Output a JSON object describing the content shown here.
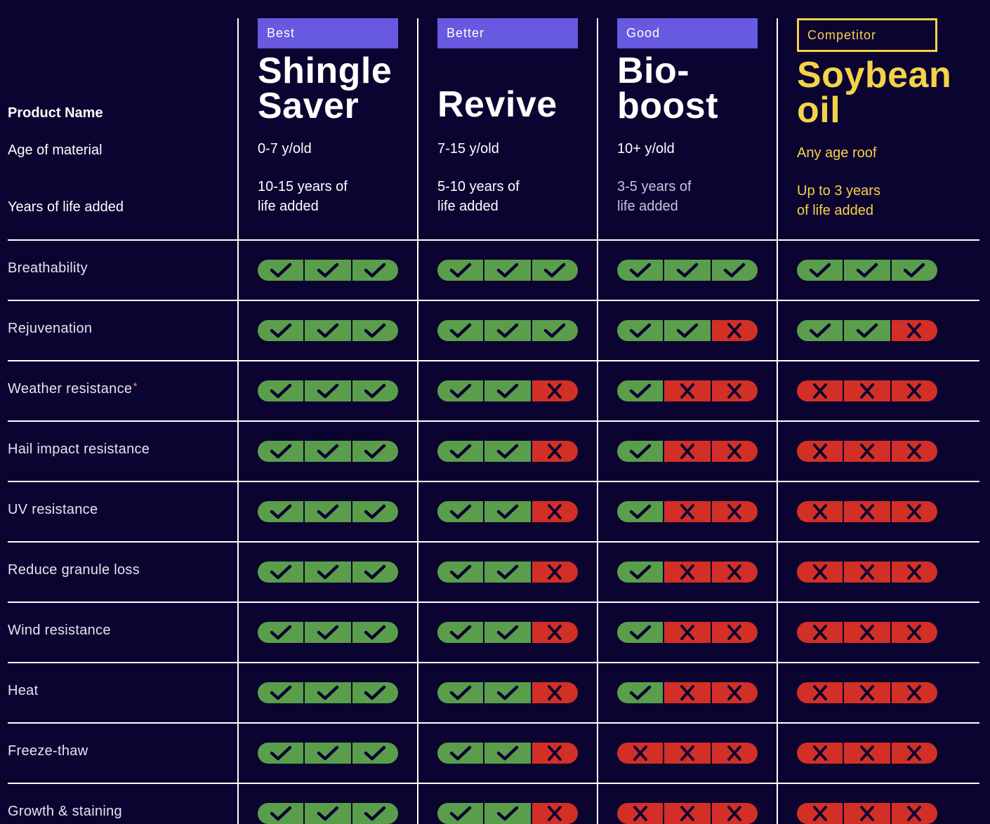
{
  "labels": {
    "product_name": "Product Name",
    "age": "Age of material",
    "life": "Years of life added"
  },
  "products": [
    {
      "tier": "Best",
      "name": "Shingle\nSaver",
      "age": "0-7 y/old",
      "life": "10-15 years of\nlife added",
      "competitor": false
    },
    {
      "tier": "Better",
      "name": "Revive",
      "age": "7-15 y/old",
      "life": "5-10 years of\nlife added",
      "competitor": false
    },
    {
      "tier": "Good",
      "name": "Bio-\nboost",
      "age": "10+ y/old",
      "life": "3-5 years of\nlife added",
      "competitor": false
    },
    {
      "tier": "Competitor",
      "name": "Soybean\noil",
      "age": "Any age roof",
      "life": "Up to 3 years\nof life added",
      "competitor": true
    }
  ],
  "rows": [
    {
      "label": "Breathability",
      "asterisk": "",
      "ratings": [
        3,
        3,
        3,
        3
      ]
    },
    {
      "label": "Rejuvenation",
      "asterisk": "",
      "ratings": [
        3,
        3,
        2,
        2
      ]
    },
    {
      "label": "Weather resistance",
      "asterisk": "*",
      "ratings": [
        3,
        2,
        1,
        0
      ]
    },
    {
      "label": "Hail impact resistance",
      "asterisk": "",
      "ratings": [
        3,
        2,
        1,
        0
      ]
    },
    {
      "label": "UV resistance",
      "asterisk": "",
      "ratings": [
        3,
        2,
        1,
        0
      ]
    },
    {
      "label": "Reduce granule loss",
      "asterisk": "",
      "ratings": [
        3,
        2,
        1,
        0
      ]
    },
    {
      "label": "Wind resistance",
      "asterisk": "",
      "ratings": [
        3,
        2,
        1,
        0
      ]
    },
    {
      "label": "Heat",
      "asterisk": "",
      "ratings": [
        3,
        2,
        1,
        0
      ]
    },
    {
      "label": "Freeze-thaw",
      "asterisk": "",
      "ratings": [
        3,
        2,
        0,
        0
      ]
    },
    {
      "label": "Growth & staining",
      "asterisk": "",
      "ratings": [
        3,
        2,
        0,
        0
      ]
    }
  ],
  "icons": {
    "yes": "check-icon",
    "no": "cross-icon"
  },
  "colors": {
    "background": "#0c0430",
    "tier": "#675ae0",
    "competitor": "#f4d24a",
    "yes": "#5a9e4c",
    "no": "#d22f26",
    "asterisk": "#f08a3c"
  }
}
